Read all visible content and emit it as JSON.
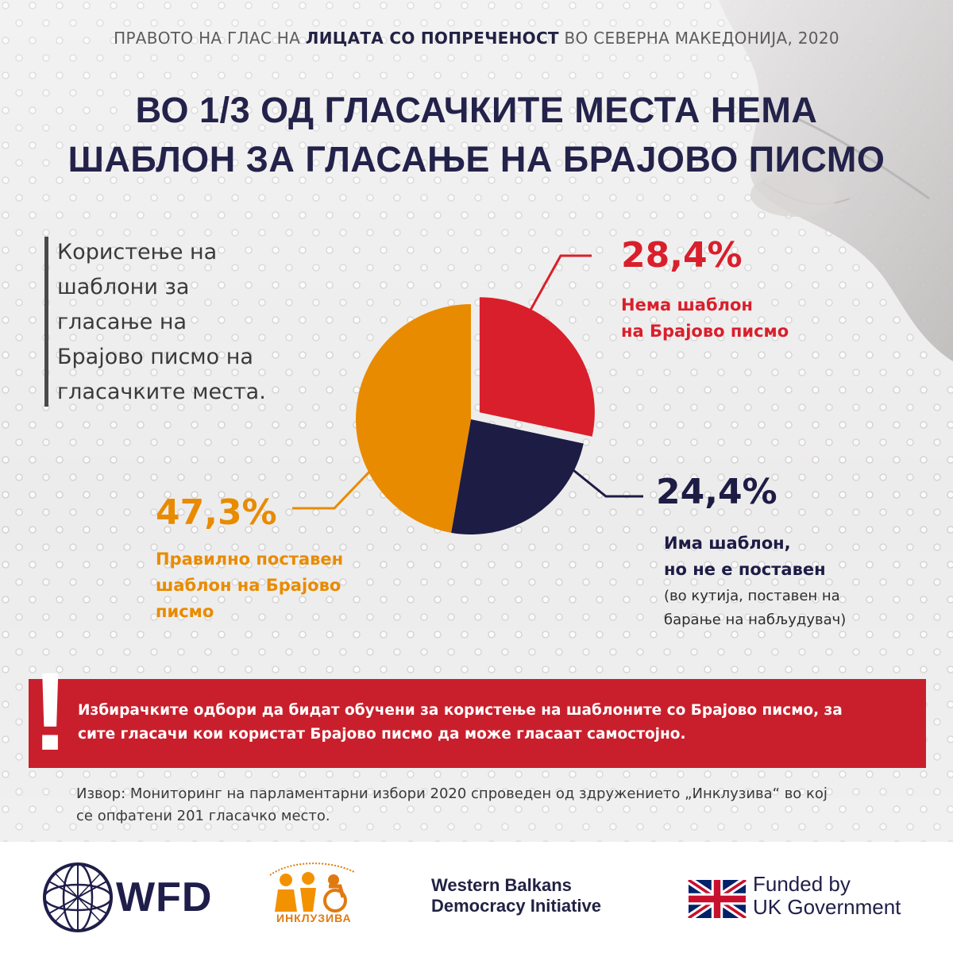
{
  "header": {
    "supertitle_pre": "ПРАВОТО НА ГЛАС НА ",
    "supertitle_bold": "ЛИЦАТА СО ПОПРЕЧЕНОСТ",
    "supertitle_post": " ВО СЕВЕРНА МАКЕДОНИЈА, 2020",
    "title_line1": "ВО 1/3 ОД ГЛАСАЧКИТЕ МЕСТА НЕМА",
    "title_line2": "ШАБЛОН ЗА ГЛАСАЊЕ НА БРАЈОВО ПИСМО"
  },
  "subtitle": {
    "line1": "Користење на",
    "line2": "шаблони за",
    "line3": "гласање на",
    "line4": "Брајово писмо на",
    "line5": "гласачките места."
  },
  "chart_data": {
    "type": "pie",
    "unit": "%",
    "slices": [
      {
        "key": "red",
        "value": 28.4,
        "percent_label": "28,4%",
        "label_line1": "Нема шаблон",
        "label_line2": "на Брајово писмо",
        "color": "#d91f2b",
        "exploded": true
      },
      {
        "key": "navy",
        "value": 24.4,
        "percent_label": "24,4%",
        "label_line1": "Има шаблон,",
        "label_line2": "но не е поставен",
        "note_line1": "(во кутија, поставен на",
        "note_line2": "барање на набљудувач)",
        "color": "#1d1c45",
        "exploded": false
      },
      {
        "key": "orange",
        "value": 47.3,
        "percent_label": "47,3%",
        "label_line1": "Правилно поставен",
        "label_line2": "шаблон на Брајово",
        "label_line3": "писмо",
        "color": "#e88b00",
        "exploded": false
      }
    ]
  },
  "banner": {
    "line1": "Избирачките одбори да бидат обучени за користење на шаблоните со Брајово писмо, за",
    "line2": "сите гласачи кои користат Брајово писмо да може гласаат самостојно."
  },
  "source": {
    "line1": "Извор: Мониторинг на парламентарни избори 2020 спроведен од здружението „Инклузива“ во кој",
    "line2": "се опфатени 201 гласачко место."
  },
  "footer": {
    "wfd": "WFD",
    "inkluziva": "ИНКЛУЗИВА",
    "wbdi": "Western Balkans\nDemocracy Initiative",
    "uk": "Funded by\nUK Government"
  },
  "colors": {
    "red": "#d91f2b",
    "navy": "#1d1c45",
    "orange": "#e88b00",
    "banner": "#c91f2c",
    "title": "#23224a"
  }
}
